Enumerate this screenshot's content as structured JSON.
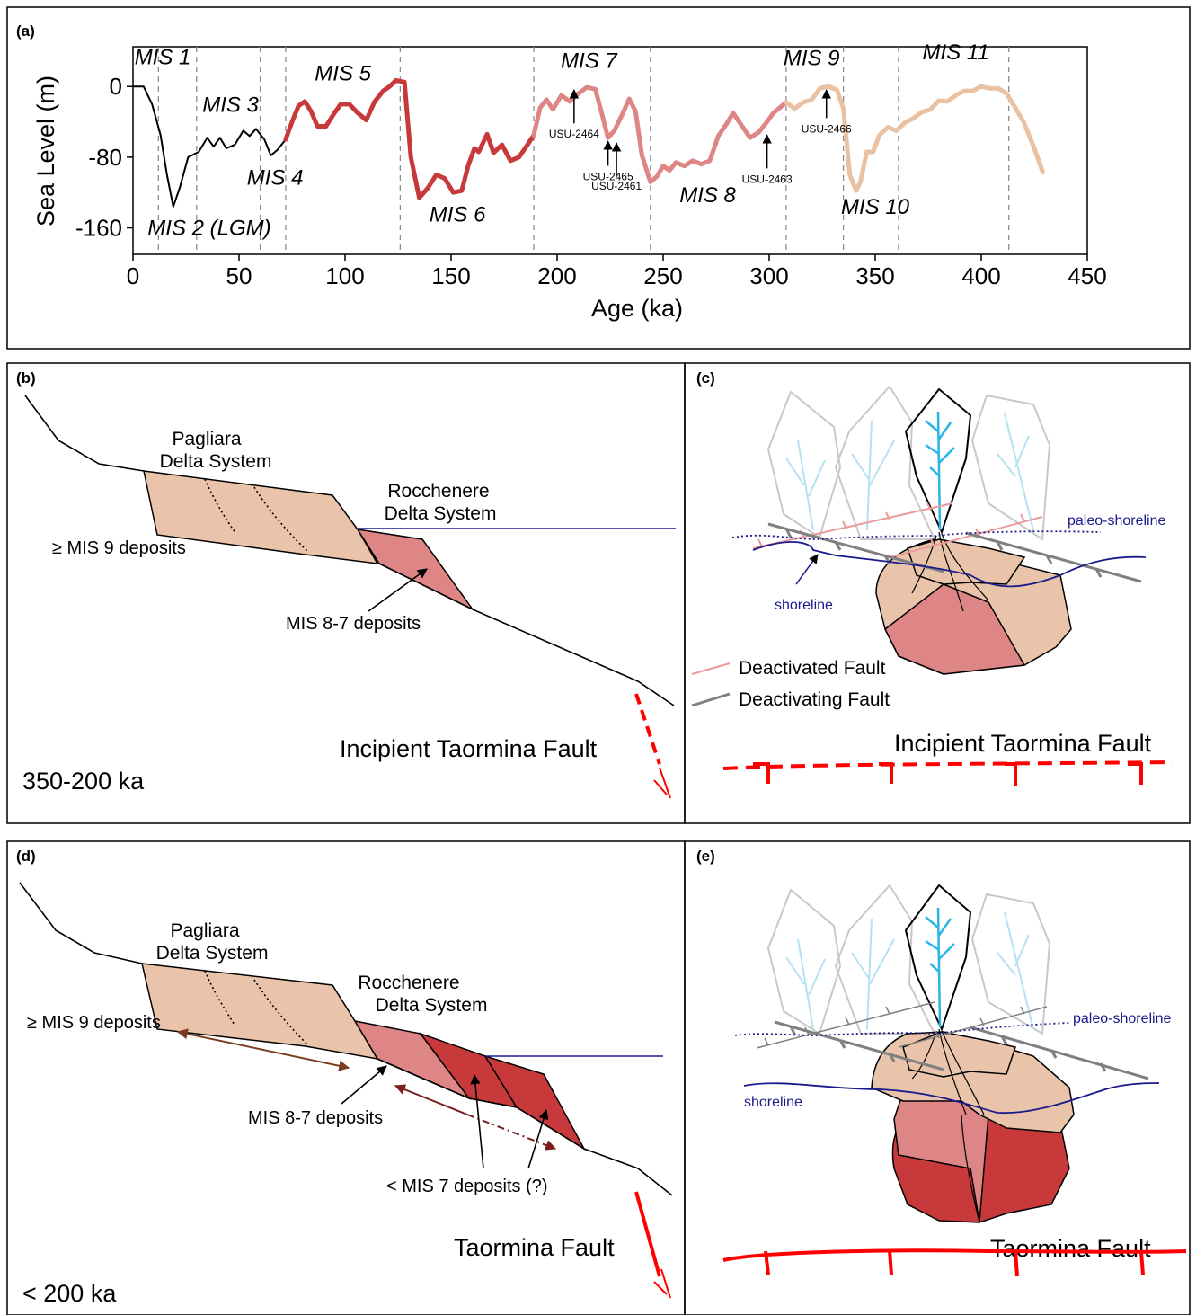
{
  "panels": {
    "a": {
      "label": "(a)",
      "chart_data": {
        "type": "line",
        "xlabel": "Age (ka)",
        "ylabel": "Sea Level (m)",
        "xlim": [
          0,
          450
        ],
        "ylim": [
          -190,
          45
        ],
        "xticks": [
          "0",
          "50",
          "100",
          "150",
          "200",
          "250",
          "300",
          "350",
          "400",
          "450"
        ],
        "yticks": [
          "0",
          "-80",
          "-160"
        ],
        "xtick_values": [
          0,
          50,
          100,
          150,
          200,
          250,
          300,
          350,
          400,
          450
        ],
        "ytick_values": [
          0,
          -80,
          -160
        ],
        "stage_boundaries": [
          12,
          30,
          60,
          72,
          126,
          189,
          244,
          308,
          335,
          361,
          413
        ],
        "stage_labels": [
          {
            "text": "MIS 1",
            "x": 14,
            "y": 25
          },
          {
            "text": "MIS 2 (LGM)",
            "x": 36,
            "y": -168
          },
          {
            "text": "MIS 3",
            "x": 46,
            "y": -29
          },
          {
            "text": "MIS 4",
            "x": 67,
            "y": -111
          },
          {
            "text": "MIS 5",
            "x": 99,
            "y": 7
          },
          {
            "text": "MIS 6",
            "x": 153,
            "y": -153
          },
          {
            "text": "MIS 7",
            "x": 215,
            "y": 21
          },
          {
            "text": "MIS 8",
            "x": 271,
            "y": -131
          },
          {
            "text": "MIS 9",
            "x": 320,
            "y": 24
          },
          {
            "text": "MIS 10",
            "x": 350,
            "y": -144
          },
          {
            "text": "MIS 11",
            "x": 388,
            "y": 31
          }
        ],
        "samples": [
          {
            "text": "USU-2464",
            "x": 208,
            "y": -58,
            "arrow_to": -4
          },
          {
            "text": "USU-2465",
            "x": 224,
            "y": -106,
            "arrow_to": -62
          },
          {
            "text": "USU-2461",
            "x": 228,
            "y": -117,
            "arrow_to": -64
          },
          {
            "text": "USU-2463",
            "x": 299,
            "y": -109,
            "arrow_to": -55
          },
          {
            "text": "USU-2466",
            "x": 327,
            "y": -52,
            "arrow_to": -4
          }
        ],
        "series": [
          {
            "color": "#000000",
            "width": 2,
            "x": [
              0,
              5,
              9,
              13,
              16,
              19,
              22,
              26,
              31,
              35,
              38,
              41,
              44,
              48,
              52,
              55,
              58,
              62,
              65,
              68,
              72
            ],
            "y": [
              0,
              0,
              -20,
              -55,
              -100,
              -136,
              -115,
              -80,
              -74,
              -58,
              -68,
              -58,
              -70,
              -66,
              -50,
              -56,
              -48,
              -60,
              -78,
              -72,
              -60
            ]
          },
          {
            "color": "#c8393b",
            "width": 5,
            "x": [
              72,
              75,
              78,
              81,
              84,
              87,
              91,
              95,
              98,
              102,
              106,
              110,
              114,
              118,
              121,
              124,
              128,
              131,
              135,
              139,
              143,
              147,
              151,
              155,
              158,
              161,
              163,
              167,
              170,
              174,
              178,
              182,
              186,
              189
            ],
            "y": [
              -60,
              -40,
              -22,
              -17,
              -28,
              -45,
              -45,
              -30,
              -20,
              -20,
              -30,
              -38,
              -17,
              -5,
              0,
              7,
              5,
              -80,
              -126,
              -115,
              -100,
              -104,
              -120,
              -118,
              -90,
              -70,
              -74,
              -54,
              -75,
              -66,
              -84,
              -80,
              -66,
              -55
            ]
          },
          {
            "color": "#de8585",
            "width": 5,
            "x": [
              189,
              192,
              195,
              198,
              202,
              206,
              210,
              214,
              218,
              221,
              224,
              227,
              231,
              234,
              237,
              240,
              244,
              247,
              250,
              253,
              256,
              260,
              264,
              268,
              272,
              276,
              280,
              283,
              287,
              291,
              295,
              299,
              302,
              305,
              308
            ],
            "y": [
              -55,
              -24,
              -15,
              -26,
              -10,
              -17,
              -8,
              -1,
              -3,
              -30,
              -58,
              -50,
              -30,
              -14,
              -28,
              -78,
              -108,
              -102,
              -90,
              -95,
              -86,
              -90,
              -84,
              -88,
              -84,
              -56,
              -42,
              -30,
              -44,
              -58,
              -52,
              -40,
              -30,
              -24,
              -18
            ]
          },
          {
            "color": "#e9c1a3",
            "width": 5,
            "x": [
              308,
              312,
              316,
              320,
              324,
              328,
              332,
              335,
              338,
              341,
              343,
              346,
              349,
              352,
              356,
              360,
              364,
              368,
              372,
              376,
              380,
              384,
              388,
              392,
              396,
              400,
              404,
              408,
              412,
              416,
              420,
              425,
              429
            ],
            "y": [
              -18,
              -25,
              -18,
              -15,
              -2,
              0,
              -4,
              -25,
              -100,
              -118,
              -108,
              -74,
              -74,
              -55,
              -46,
              -50,
              -41,
              -36,
              -29,
              -26,
              -16,
              -17,
              -10,
              -5,
              -5,
              0,
              -2,
              -2,
              -8,
              -24,
              -40,
              -70,
              -97
            ]
          }
        ]
      }
    },
    "b": {
      "label": "(b)",
      "pagliara": "Pagliara\nDelta System",
      "rocchenere": "Rocchenere\nDelta System",
      "mis9": "≥ MIS 9 deposits",
      "mis87": "MIS 8-7 deposits",
      "fault": "Incipient Taormina Fault",
      "age": "350-200 ka"
    },
    "c": {
      "label": "(c)",
      "paleo_shoreline": "paleo-shoreline",
      "shoreline": "shoreline",
      "legend_deactivated": "Deactivated  Fault",
      "legend_deactivating": "Deactivating  Fault",
      "fault": "Incipient Taormina Fault"
    },
    "d": {
      "label": "(d)",
      "pagliara": "Pagliara\nDelta System",
      "rocchenere": "Rocchenere\nDelta System",
      "mis9": "≥ MIS 9 deposits",
      "mis87": "MIS 8-7 deposits",
      "mis7": "< MIS 7 deposits (?)",
      "fault": "Taormina Fault",
      "age": "< 200 ka"
    },
    "e": {
      "label": "(e)",
      "paleo_shoreline": "paleo-shoreline",
      "shoreline": "shoreline",
      "fault": "Taormina Fault"
    }
  },
  "colors": {
    "mis9_fill": "#e9c4aa",
    "mis87_fill": "#de8585",
    "mis7_fill": "#c8393b",
    "fault_red": "#ff0000",
    "shoreline_blue": "#1a1a8c",
    "stream_cyan": "#29b6e6",
    "stream_faded": "#b3e2f2",
    "deactivated_fault": "#eb9b9b",
    "deactivating_fault": "#808080"
  }
}
